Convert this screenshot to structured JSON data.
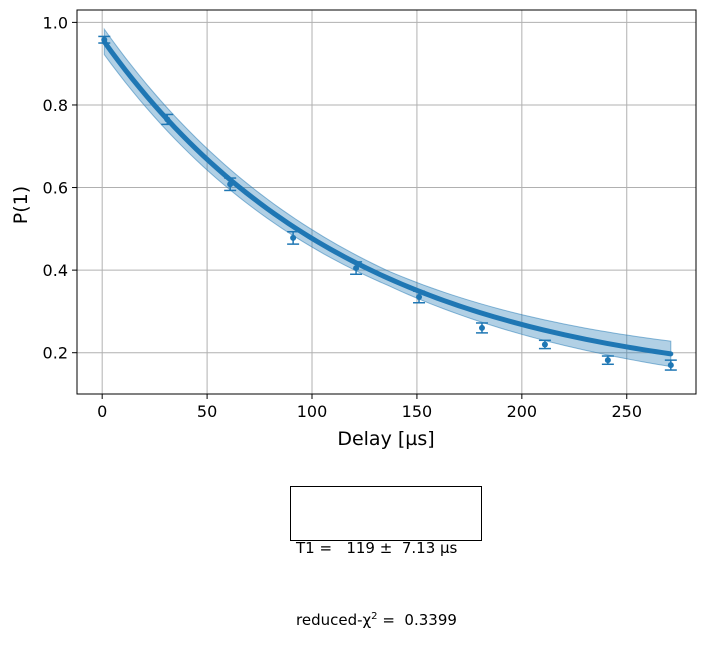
{
  "chart_data": {
    "type": "scatter",
    "xlabel": "Delay [µs]",
    "ylabel": "P(1)",
    "xlim": [
      -12,
      283
    ],
    "ylim": [
      0.1,
      1.03
    ],
    "xticks": [
      0,
      50,
      100,
      150,
      200,
      250
    ],
    "yticks": [
      0.2,
      0.4,
      0.6,
      0.8,
      1.0
    ],
    "xtick_labels": [
      "0",
      "50",
      "100",
      "150",
      "200",
      "250"
    ],
    "ytick_labels": [
      "0.2",
      "0.4",
      "0.6",
      "0.8",
      "1.0"
    ],
    "grid": true,
    "series": [
      {
        "kind": "data_with_errorbars",
        "color": "#1f77b4",
        "x": [
          1,
          31,
          61,
          91,
          121,
          151,
          181,
          211,
          241,
          271
        ],
        "y": [
          0.958,
          0.765,
          0.608,
          0.478,
          0.405,
          0.335,
          0.26,
          0.22,
          0.182,
          0.17
        ],
        "yerr": [
          0.008,
          0.012,
          0.015,
          0.015,
          0.015,
          0.014,
          0.012,
          0.01,
          0.01,
          0.012
        ]
      },
      {
        "kind": "fit_curve",
        "color": "#1f77b4",
        "model": "exponential_decay",
        "A": 0.85,
        "T1": 119,
        "offset": 0.11,
        "band_halfwidth": 0.022
      }
    ]
  },
  "fit_box": {
    "line1": "T1 =   119 ±  7.13 µs",
    "line2_prefix": "reduced-χ",
    "line2_sup": "2",
    "line2_suffix": " =  0.3399"
  }
}
